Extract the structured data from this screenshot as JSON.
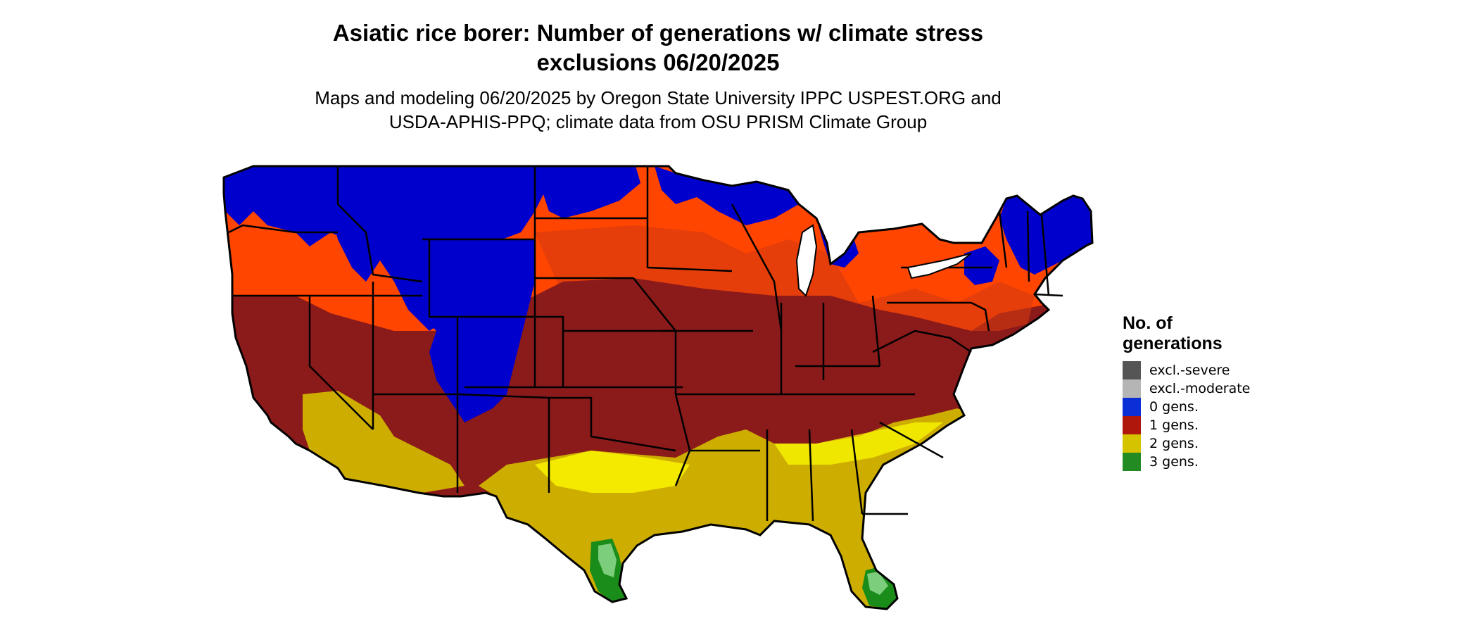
{
  "title": {
    "line1": "Asiatic rice borer: Number of generations w/ climate stress",
    "line2": "exclusions 06/20/2025"
  },
  "subtitle": {
    "line1": "Maps and modeling 06/20/2025 by Oregon State University IPPC USPEST.ORG and",
    "line2": "USDA-APHIS-PPQ; climate data from OSU PRISM Climate Group"
  },
  "legend": {
    "title_line1": "No. of",
    "title_line2": "generations",
    "items": [
      {
        "label": "excl.-severe",
        "color": "#555555"
      },
      {
        "label": "excl.-moderate",
        "color": "#b5b5b5"
      },
      {
        "label": "0 gens.",
        "color": "#0a2fd6"
      },
      {
        "label": "1 gens.",
        "color": "#b0170c"
      },
      {
        "label": "2 gens.",
        "color": "#d6c300"
      },
      {
        "label": "3 gens.",
        "color": "#228b22"
      }
    ]
  },
  "map": {
    "region": "contiguous-united-states",
    "colors": {
      "zero_gens": "#0000cd",
      "one_gen_high": "#ff4500",
      "one_gen_low": "#8b1a1a",
      "two_gens": "#cdad00",
      "two_gens_light": "#ffff00",
      "three_gens": "#1a8c1a",
      "three_gens_light": "#7ccd7c",
      "border": "#000000"
    }
  }
}
